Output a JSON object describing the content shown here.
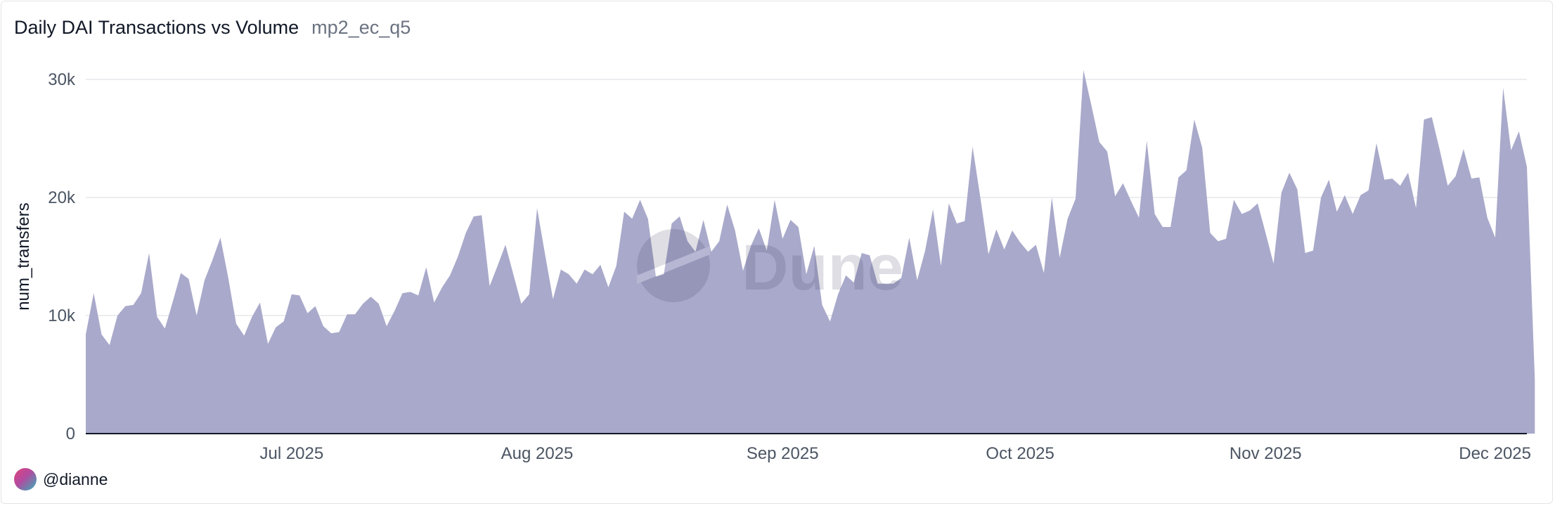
{
  "header": {
    "title": "Daily DAI Transactions vs Volume",
    "subtitle": "mp2_ec_q5"
  },
  "footer": {
    "author": "@dianne"
  },
  "watermark": "Dune",
  "colors": {
    "area": "#a9a9cb",
    "grid": "#e5e7eb",
    "axis": "#111827"
  },
  "chart_data": {
    "type": "area",
    "title": "Daily DAI Transactions vs Volume",
    "ylabel": "num_transfers",
    "xlabel": "",
    "ylim": [
      0,
      30000
    ],
    "yticks": [
      0,
      10000,
      20000,
      30000
    ],
    "ytick_labels": [
      "0",
      "10k",
      "20k",
      "30k"
    ],
    "x_start": "2025-06-05",
    "x_end": "2025-12-04",
    "xticks": [
      "2025-07-01",
      "2025-08-01",
      "2025-09-01",
      "2025-10-01",
      "2025-11-01",
      "2025-12-01"
    ],
    "xtick_labels": [
      "Jul 2025",
      "Aug 2025",
      "Sep 2025",
      "Oct 2025",
      "Nov 2025",
      "Dec 2025"
    ],
    "grid": true,
    "legend": "none",
    "series": [
      {
        "points": [
          [
            "2025-06-05",
            8400
          ],
          [
            "2025-06-06",
            11900
          ],
          [
            "2025-06-07",
            8400
          ],
          [
            "2025-06-08",
            7500
          ],
          [
            "2025-06-09",
            10000
          ],
          [
            "2025-06-10",
            10800
          ],
          [
            "2025-06-11",
            10900
          ],
          [
            "2025-06-12",
            11900
          ],
          [
            "2025-06-13",
            15300
          ],
          [
            "2025-06-14",
            9900
          ],
          [
            "2025-06-15",
            8900
          ],
          [
            "2025-06-16",
            11200
          ],
          [
            "2025-06-17",
            13600
          ],
          [
            "2025-06-18",
            13100
          ],
          [
            "2025-06-19",
            10000
          ],
          [
            "2025-06-20",
            13000
          ],
          [
            "2025-06-21",
            14700
          ],
          [
            "2025-06-22",
            16600
          ],
          [
            "2025-06-23",
            13200
          ],
          [
            "2025-06-24",
            9300
          ],
          [
            "2025-06-25",
            8300
          ],
          [
            "2025-06-26",
            9900
          ],
          [
            "2025-06-27",
            11100
          ],
          [
            "2025-06-28",
            7600
          ],
          [
            "2025-06-29",
            9000
          ],
          [
            "2025-06-30",
            9500
          ],
          [
            "2025-07-01",
            11800
          ],
          [
            "2025-07-02",
            11700
          ],
          [
            "2025-07-03",
            10200
          ],
          [
            "2025-07-04",
            10800
          ],
          [
            "2025-07-05",
            9100
          ],
          [
            "2025-07-06",
            8500
          ],
          [
            "2025-07-07",
            8600
          ],
          [
            "2025-07-08",
            10100
          ],
          [
            "2025-07-09",
            10100
          ],
          [
            "2025-07-10",
            11000
          ],
          [
            "2025-07-11",
            11600
          ],
          [
            "2025-07-12",
            11000
          ],
          [
            "2025-07-13",
            9100
          ],
          [
            "2025-07-14",
            10400
          ],
          [
            "2025-07-15",
            11900
          ],
          [
            "2025-07-16",
            12000
          ],
          [
            "2025-07-17",
            11700
          ],
          [
            "2025-07-18",
            14100
          ],
          [
            "2025-07-19",
            11100
          ],
          [
            "2025-07-20",
            12400
          ],
          [
            "2025-07-21",
            13400
          ],
          [
            "2025-07-22",
            15000
          ],
          [
            "2025-07-23",
            17000
          ],
          [
            "2025-07-24",
            18400
          ],
          [
            "2025-07-25",
            18500
          ],
          [
            "2025-07-26",
            12500
          ],
          [
            "2025-07-27",
            14200
          ],
          [
            "2025-07-28",
            16000
          ],
          [
            "2025-07-29",
            13500
          ],
          [
            "2025-07-30",
            11000
          ],
          [
            "2025-07-31",
            11800
          ],
          [
            "2025-08-01",
            19100
          ],
          [
            "2025-08-02",
            15200
          ],
          [
            "2025-08-03",
            11400
          ],
          [
            "2025-08-04",
            13900
          ],
          [
            "2025-08-05",
            13500
          ],
          [
            "2025-08-06",
            12700
          ],
          [
            "2025-08-07",
            13900
          ],
          [
            "2025-08-08",
            13500
          ],
          [
            "2025-08-09",
            14300
          ],
          [
            "2025-08-10",
            12400
          ],
          [
            "2025-08-11",
            14200
          ],
          [
            "2025-08-12",
            18800
          ],
          [
            "2025-08-13",
            18200
          ],
          [
            "2025-08-14",
            19800
          ],
          [
            "2025-08-15",
            18200
          ],
          [
            "2025-08-16",
            13300
          ],
          [
            "2025-08-17",
            13500
          ],
          [
            "2025-08-18",
            17800
          ],
          [
            "2025-08-19",
            18400
          ],
          [
            "2025-08-20",
            16300
          ],
          [
            "2025-08-21",
            15400
          ],
          [
            "2025-08-22",
            18100
          ],
          [
            "2025-08-23",
            15400
          ],
          [
            "2025-08-24",
            16300
          ],
          [
            "2025-08-25",
            19400
          ],
          [
            "2025-08-26",
            17200
          ],
          [
            "2025-08-27",
            13800
          ],
          [
            "2025-08-28",
            15900
          ],
          [
            "2025-08-29",
            17400
          ],
          [
            "2025-08-30",
            15500
          ],
          [
            "2025-08-31",
            19800
          ],
          [
            "2025-09-01",
            16500
          ],
          [
            "2025-09-02",
            18100
          ],
          [
            "2025-09-03",
            17500
          ],
          [
            "2025-09-04",
            13500
          ],
          [
            "2025-09-05",
            15900
          ],
          [
            "2025-09-06",
            10900
          ],
          [
            "2025-09-07",
            9500
          ],
          [
            "2025-09-08",
            11800
          ],
          [
            "2025-09-09",
            13400
          ],
          [
            "2025-09-10",
            12800
          ],
          [
            "2025-09-11",
            15300
          ],
          [
            "2025-09-12",
            15100
          ],
          [
            "2025-09-13",
            12700
          ],
          [
            "2025-09-14",
            12700
          ],
          [
            "2025-09-15",
            12700
          ],
          [
            "2025-09-16",
            13200
          ],
          [
            "2025-09-17",
            16600
          ],
          [
            "2025-09-18",
            13000
          ],
          [
            "2025-09-19",
            15500
          ],
          [
            "2025-09-20",
            19000
          ],
          [
            "2025-09-21",
            14200
          ],
          [
            "2025-09-22",
            19500
          ],
          [
            "2025-09-23",
            17800
          ],
          [
            "2025-09-24",
            18000
          ],
          [
            "2025-09-25",
            24300
          ],
          [
            "2025-09-26",
            19900
          ],
          [
            "2025-09-27",
            15200
          ],
          [
            "2025-09-28",
            17300
          ],
          [
            "2025-09-29",
            15600
          ],
          [
            "2025-09-30",
            17200
          ],
          [
            "2025-10-01",
            16200
          ],
          [
            "2025-10-02",
            15400
          ],
          [
            "2025-10-03",
            16000
          ],
          [
            "2025-10-04",
            13600
          ],
          [
            "2025-10-05",
            20000
          ],
          [
            "2025-10-06",
            14900
          ],
          [
            "2025-10-07",
            18200
          ],
          [
            "2025-10-08",
            19900
          ],
          [
            "2025-10-09",
            30800
          ],
          [
            "2025-10-10",
            27800
          ],
          [
            "2025-10-11",
            24700
          ],
          [
            "2025-10-12",
            23900
          ],
          [
            "2025-10-13",
            20100
          ],
          [
            "2025-10-14",
            21200
          ],
          [
            "2025-10-15",
            19700
          ],
          [
            "2025-10-16",
            18300
          ],
          [
            "2025-10-17",
            24800
          ],
          [
            "2025-10-18",
            18600
          ],
          [
            "2025-10-19",
            17500
          ],
          [
            "2025-10-20",
            17500
          ],
          [
            "2025-10-21",
            21700
          ],
          [
            "2025-10-22",
            22300
          ],
          [
            "2025-10-23",
            26600
          ],
          [
            "2025-10-24",
            24200
          ],
          [
            "2025-10-25",
            17000
          ],
          [
            "2025-10-26",
            16300
          ],
          [
            "2025-10-27",
            16500
          ],
          [
            "2025-10-28",
            19800
          ],
          [
            "2025-10-29",
            18600
          ],
          [
            "2025-10-30",
            18900
          ],
          [
            "2025-10-31",
            19500
          ],
          [
            "2025-11-01",
            17000
          ],
          [
            "2025-11-02",
            14400
          ],
          [
            "2025-11-03",
            20400
          ],
          [
            "2025-11-04",
            22100
          ],
          [
            "2025-11-05",
            20700
          ],
          [
            "2025-11-06",
            15300
          ],
          [
            "2025-11-07",
            15500
          ],
          [
            "2025-11-08",
            20000
          ],
          [
            "2025-11-09",
            21500
          ],
          [
            "2025-11-10",
            18800
          ],
          [
            "2025-11-11",
            20200
          ],
          [
            "2025-11-12",
            18600
          ],
          [
            "2025-11-13",
            20200
          ],
          [
            "2025-11-14",
            20600
          ],
          [
            "2025-11-15",
            24600
          ],
          [
            "2025-11-16",
            21500
          ],
          [
            "2025-11-17",
            21600
          ],
          [
            "2025-11-18",
            21000
          ],
          [
            "2025-11-19",
            22100
          ],
          [
            "2025-11-20",
            19100
          ],
          [
            "2025-11-21",
            26600
          ],
          [
            "2025-11-22",
            26800
          ],
          [
            "2025-11-23",
            24000
          ],
          [
            "2025-11-24",
            21000
          ],
          [
            "2025-11-25",
            21800
          ],
          [
            "2025-11-26",
            24100
          ],
          [
            "2025-11-27",
            21600
          ],
          [
            "2025-11-28",
            21700
          ],
          [
            "2025-11-29",
            18300
          ],
          [
            "2025-11-30",
            16600
          ],
          [
            "2025-12-01",
            29300
          ],
          [
            "2025-12-02",
            24000
          ],
          [
            "2025-12-03",
            25600
          ],
          [
            "2025-12-04",
            22600
          ],
          [
            "2025-12-05",
            4600
          ]
        ]
      }
    ]
  }
}
